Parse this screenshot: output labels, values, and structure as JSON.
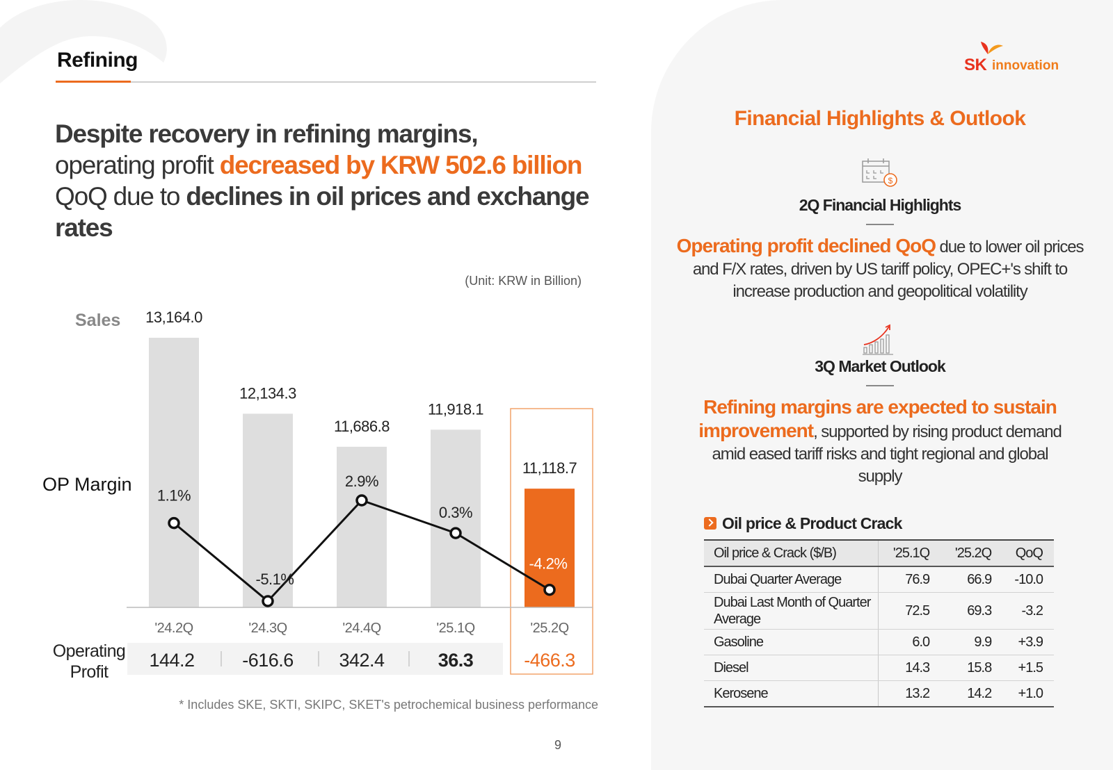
{
  "header": {
    "section": "Refining"
  },
  "headline": {
    "l1_bold": "Despite recovery in refining margins,",
    "l2_pre": "operating profit ",
    "l2_orange": "decreased by KRW 502.6 billion",
    "l3_mid": " QoQ due to ",
    "l3_bold": "declines in oil prices and exchange rates"
  },
  "unit_note": "(Unit: KRW in Billion)",
  "labels": {
    "sales": "Sales",
    "op_margin": "OP Margin",
    "operating_profit": "Operating Profit"
  },
  "chart_data": {
    "type": "bar",
    "categories": [
      "'24.2Q",
      "'24.3Q",
      "'24.4Q",
      "'25.1Q",
      "'25.2Q"
    ],
    "sales": [
      13164.0,
      12134.3,
      11686.8,
      11918.1,
      11118.7
    ],
    "sales_labels": [
      "13,164.0",
      "12,134.3",
      "11,686.8",
      "11,918.1",
      "11,118.7"
    ],
    "op_margin": [
      1.1,
      -5.1,
      2.9,
      0.3,
      -4.2
    ],
    "op_margin_labels": [
      "1.1%",
      "-5.1%",
      "2.9%",
      "0.3%",
      "-4.2%"
    ],
    "operating_profit": [
      144.2,
      -616.6,
      342.4,
      36.3,
      -466.3
    ],
    "operating_profit_labels": [
      "144.2",
      "-616.6",
      "342.4",
      "36.3",
      "-466.3"
    ],
    "highlight_index": 4,
    "colors": {
      "bar": "#dedede",
      "highlight_bar": "#ec6b1e",
      "line": "#111111",
      "accent": "#ec6b1e"
    }
  },
  "footnote": "* Includes SKE, SKTI, SKIPC, SKET's petrochemical business performance",
  "page_number": "9",
  "logo": {
    "sk": "SK",
    "innovation": "innovation"
  },
  "right": {
    "title": "Financial Highlights & Outlook",
    "highlights": {
      "title": "2Q Financial Highlights",
      "icon": "calendar-dollar-icon",
      "emph": "Operating profit declined QoQ",
      "rest": " due to lower oil prices and F/X rates, driven by US tariff policy, OPEC+'s shift to increase production and geopolitical volatility"
    },
    "outlook": {
      "title": "3Q Market Outlook",
      "icon": "growth-chart-icon",
      "emph": "Refining margins are expected to sustain improvement",
      "rest": ", supported by rising product demand amid eased tariff risks and tight regional and global supply"
    },
    "table": {
      "title": "Oil price & Product Crack",
      "headers": [
        "Oil price & Crack ($/B)",
        "'25.1Q",
        "'25.2Q",
        "QoQ"
      ],
      "rows": [
        [
          "Dubai Quarter Average",
          "76.9",
          "66.9",
          "-10.0"
        ],
        [
          "Dubai Last Month of Quarter Average",
          "72.5",
          "69.3",
          "-3.2"
        ],
        [
          "Gasoline",
          "6.0",
          "9.9",
          "+3.9"
        ],
        [
          "Diesel",
          "14.3",
          "15.8",
          "+1.5"
        ],
        [
          "Kerosene",
          "13.2",
          "14.2",
          "+1.0"
        ]
      ]
    }
  }
}
